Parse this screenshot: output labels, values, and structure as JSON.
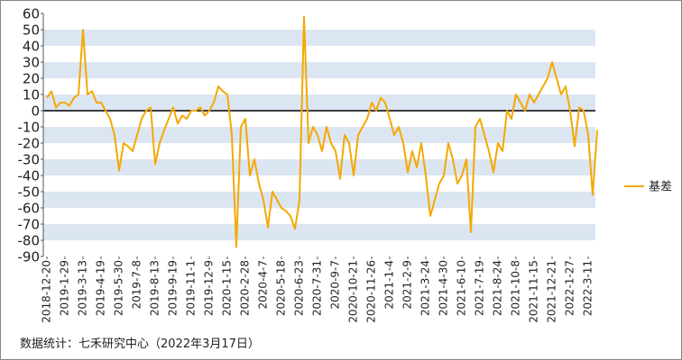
{
  "chart_data": {
    "type": "line",
    "categories": [
      "2018-12-20",
      null,
      null,
      null,
      "2019-1-29",
      null,
      null,
      null,
      "2019-3-13",
      null,
      null,
      null,
      "2019-4-19",
      null,
      null,
      null,
      "2019-5-30",
      null,
      null,
      null,
      "2019-7-8",
      null,
      null,
      null,
      "2019-8-13",
      null,
      null,
      null,
      "2019-9-19",
      null,
      null,
      null,
      "2019-11-1",
      null,
      null,
      null,
      "2019-12-9",
      null,
      null,
      null,
      "2020-1-15",
      null,
      null,
      null,
      "2020-2-28",
      null,
      null,
      null,
      "2020-4-7",
      null,
      null,
      null,
      "2020-5-18",
      null,
      null,
      null,
      "2020-6-23",
      null,
      null,
      null,
      "2020-7-31",
      null,
      null,
      null,
      "2020-9-7",
      null,
      null,
      null,
      "2020-10-21",
      null,
      null,
      null,
      "2020-11-26",
      null,
      null,
      null,
      "2021-1-4",
      null,
      null,
      null,
      "2021-2-9",
      null,
      null,
      null,
      "2021-3-24",
      null,
      null,
      null,
      "2021-4-30",
      null,
      null,
      null,
      "2021-6-10",
      null,
      null,
      null,
      "2021-7-19",
      null,
      null,
      null,
      "2021-8-24",
      null,
      null,
      null,
      "2021-10-8",
      null,
      null,
      null,
      "2021-11-15",
      null,
      null,
      null,
      "2021-12-21",
      null,
      null,
      null,
      "2022-1-27",
      null,
      null,
      null,
      "2022-3-11",
      null,
      null
    ],
    "series": [
      {
        "name": "基差",
        "color": "#f5a800",
        "values": [
          8,
          12,
          2,
          5,
          5,
          3,
          8,
          10,
          50,
          10,
          12,
          5,
          5,
          0,
          -5,
          -15,
          -37,
          -20,
          -22,
          -25,
          -15,
          -5,
          0,
          2,
          -33,
          -20,
          -12,
          -5,
          2,
          -8,
          -3,
          -5,
          0,
          0,
          2,
          -3,
          0,
          5,
          15,
          12,
          10,
          -15,
          -84,
          -10,
          -5,
          -40,
          -30,
          -45,
          -55,
          -72,
          -50,
          -55,
          -60,
          -62,
          -65,
          -73,
          -55,
          58,
          -20,
          -10,
          -15,
          -25,
          -10,
          -20,
          -25,
          -42,
          -15,
          -20,
          -40,
          -15,
          -10,
          -5,
          5,
          0,
          8,
          5,
          -5,
          -15,
          -10,
          -20,
          -38,
          -25,
          -35,
          -20,
          -40,
          -65,
          -55,
          -45,
          -40,
          -20,
          -30,
          -45,
          -40,
          -30,
          -75,
          -10,
          -5,
          -15,
          -25,
          -38,
          -20,
          -25,
          0,
          -5,
          10,
          5,
          0,
          10,
          5,
          10,
          15,
          20,
          30,
          20,
          10,
          15,
          0,
          -22,
          2,
          0,
          -15,
          -52,
          -12
        ]
      }
    ],
    "ylim": [
      -90,
      60
    ],
    "yticks": [
      -90,
      -80,
      -70,
      -60,
      -50,
      -40,
      -30,
      -20,
      -10,
      0,
      10,
      20,
      30,
      40,
      50,
      60
    ],
    "grid": true,
    "legend": "right",
    "note": "数据统计：七禾研究中心（2022年3月17日）"
  }
}
